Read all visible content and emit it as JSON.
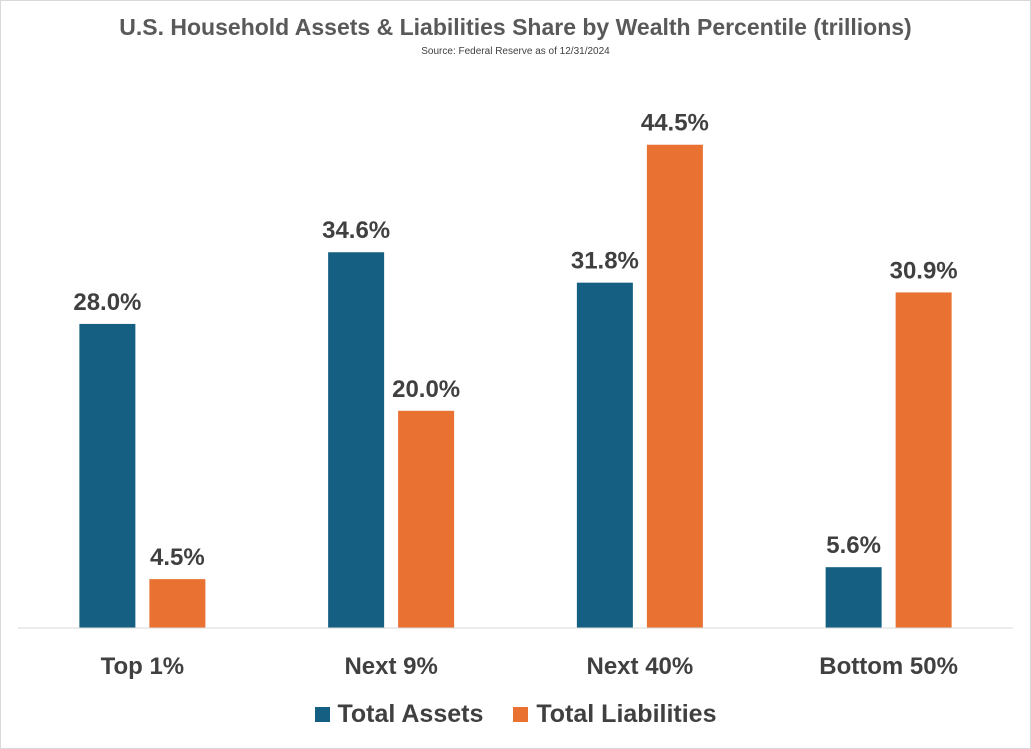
{
  "chart_data": {
    "type": "bar",
    "title": "U.S. Household Assets & Liabilities Share by Wealth Percentile (trillions)",
    "subtitle": "Source: Federal Reserve as of 12/31/2024",
    "categories": [
      "Top 1%",
      "Next 9%",
      "Next 40%",
      "Bottom 50%"
    ],
    "series": [
      {
        "name": "Total Assets",
        "values": [
          28.0,
          34.6,
          31.8,
          5.6
        ],
        "labels": [
          "28.0%",
          "34.6%",
          "31.8%",
          "5.6%"
        ],
        "color": "#156082"
      },
      {
        "name": "Total Liabilities",
        "values": [
          4.5,
          20.0,
          44.5,
          30.9
        ],
        "labels": [
          "4.5%",
          "20.0%",
          "44.5%",
          "30.9%"
        ],
        "color": "#E97132"
      }
    ],
    "ylim": [
      0,
      50
    ],
    "grid": false,
    "legend": "bottom"
  }
}
